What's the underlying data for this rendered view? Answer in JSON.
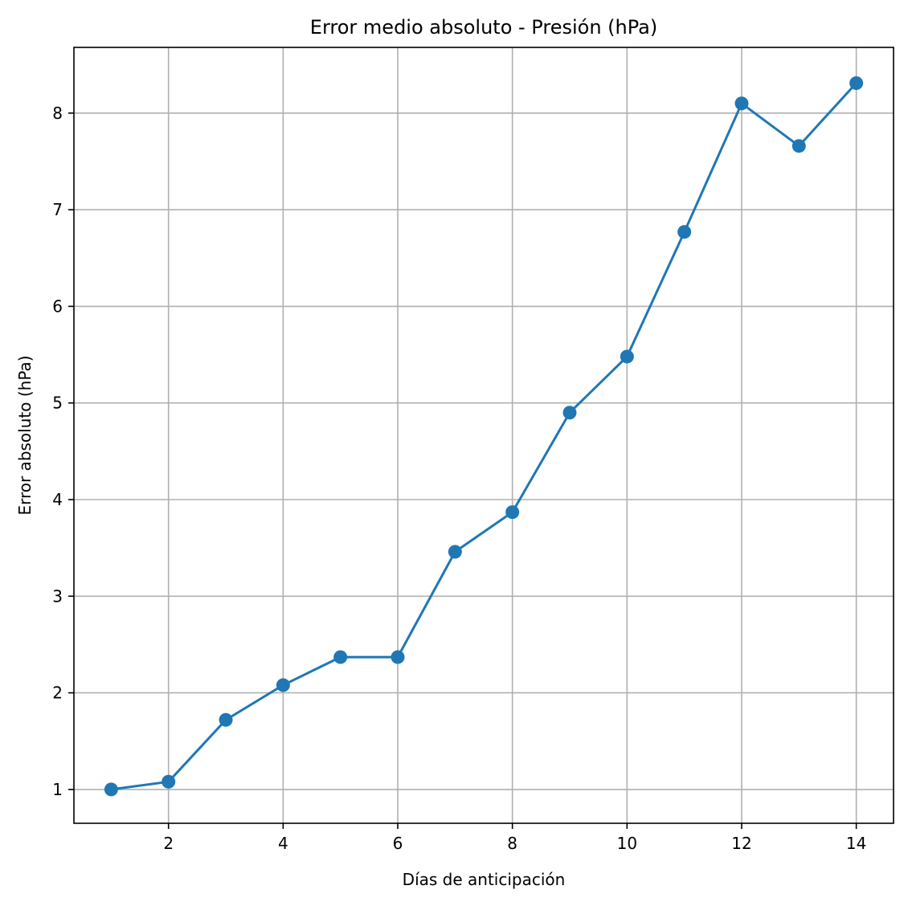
{
  "chart_data": {
    "type": "line",
    "title": "Error medio absoluto - Presión (hPa)",
    "xlabel": "Días de anticipación",
    "ylabel": "Error absoluto (hPa)",
    "xlim": [
      0.35,
      14.65
    ],
    "ylim": [
      0.65,
      8.68
    ],
    "xticks": [
      2,
      4,
      6,
      8,
      10,
      12,
      14
    ],
    "yticks": [
      1,
      2,
      3,
      4,
      5,
      6,
      7,
      8
    ],
    "grid": true,
    "series": [
      {
        "color": "#1f77b4",
        "marker": "circle",
        "x": [
          1,
          2,
          3,
          4,
          5,
          6,
          7,
          8,
          9,
          10,
          11,
          12,
          13,
          14
        ],
        "y": [
          1.0,
          1.08,
          1.72,
          2.08,
          2.37,
          2.37,
          3.46,
          3.87,
          4.9,
          5.48,
          6.77,
          8.1,
          7.66,
          8.31
        ]
      }
    ]
  }
}
